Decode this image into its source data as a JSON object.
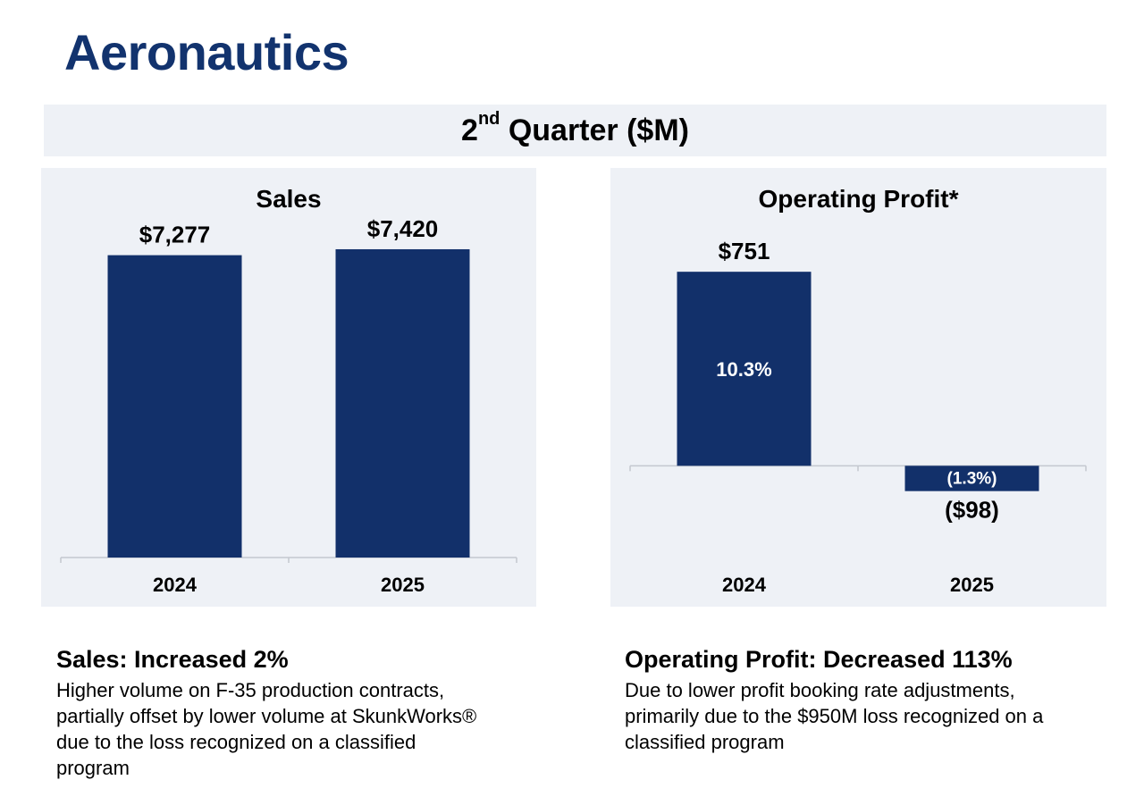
{
  "page": {
    "title": "Aeronautics",
    "banner": {
      "main": "2",
      "sup": "nd",
      "rest": " Quarter ($M)"
    }
  },
  "colors": {
    "bar": "#12306a",
    "panel_bg": "#eef1f6",
    "title": "#12336e",
    "axis": "#c4c8cf"
  },
  "chart_data": [
    {
      "type": "bar",
      "title": "Sales",
      "categories": [
        "2024",
        "2025"
      ],
      "values": [
        7277,
        7420
      ],
      "value_labels": [
        "$7,277",
        "$7,420"
      ],
      "ylim": [
        0,
        8000
      ],
      "grid": false,
      "legend": "none"
    },
    {
      "type": "bar",
      "title": "Operating Profit*",
      "categories": [
        "2024",
        "2025"
      ],
      "values": [
        751,
        -98
      ],
      "value_labels": [
        "$751",
        "($98)"
      ],
      "margin_labels": [
        "10.3%",
        "(1.3%)"
      ],
      "ylim": [
        -400,
        800
      ],
      "grid": false,
      "legend": "none"
    }
  ],
  "notes": {
    "sales": {
      "heading": "Sales: Increased 2%",
      "body": "Higher volume on F-35 production contracts,\npartially offset by lower volume at SkunkWorks®\ndue to the loss recognized on a classified\nprogram"
    },
    "profit": {
      "heading": "Operating Profit: Decreased 113%",
      "body": "Due to lower profit booking rate adjustments,\nprimarily due to the $950M loss recognized on a\nclassified program"
    }
  }
}
